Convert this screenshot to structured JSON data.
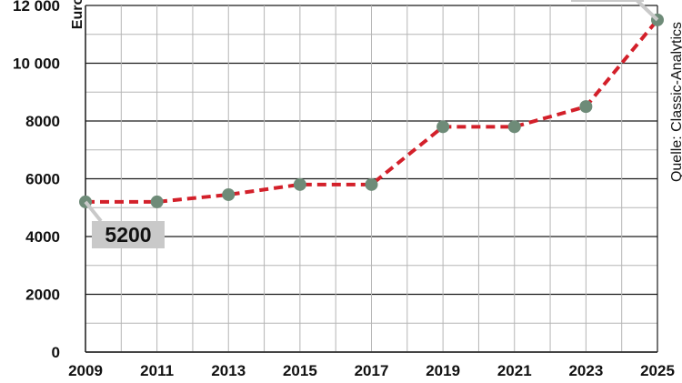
{
  "chart_data": {
    "type": "line",
    "ylabel": "Euro",
    "source": "Quelle: Classic-Analytics",
    "x": [
      2009,
      2011,
      2013,
      2015,
      2017,
      2019,
      2021,
      2023,
      2025
    ],
    "xticks": [
      "2009",
      "2011",
      "2013",
      "2015",
      "2017",
      "2019",
      "2021",
      "2023",
      "2025"
    ],
    "yticks": [
      {
        "value": 0,
        "label": "0"
      },
      {
        "value": 2000,
        "label": "2000"
      },
      {
        "value": 4000,
        "label": "4000"
      },
      {
        "value": 6000,
        "label": "6000"
      },
      {
        "value": 8000,
        "label": "8000"
      },
      {
        "value": 10000,
        "label": "10 000"
      },
      {
        "value": 12000,
        "label": "12 000"
      }
    ],
    "ylim": [
      0,
      12000
    ],
    "xlim": [
      2009,
      2025
    ],
    "series": [
      {
        "values": [
          5200,
          5200,
          5450,
          5800,
          5800,
          7800,
          7800,
          8500,
          11500
        ]
      }
    ],
    "annotations": [
      {
        "label": "5200",
        "x": 2009,
        "y": 5200
      }
    ],
    "colors": {
      "line": "#d3202a",
      "marker": "#6e8b78",
      "grid_major": "#1a1a1a",
      "grid_minor": "#b5b5b5",
      "callout_bg": "#c9c9c9"
    },
    "grid": true
  }
}
